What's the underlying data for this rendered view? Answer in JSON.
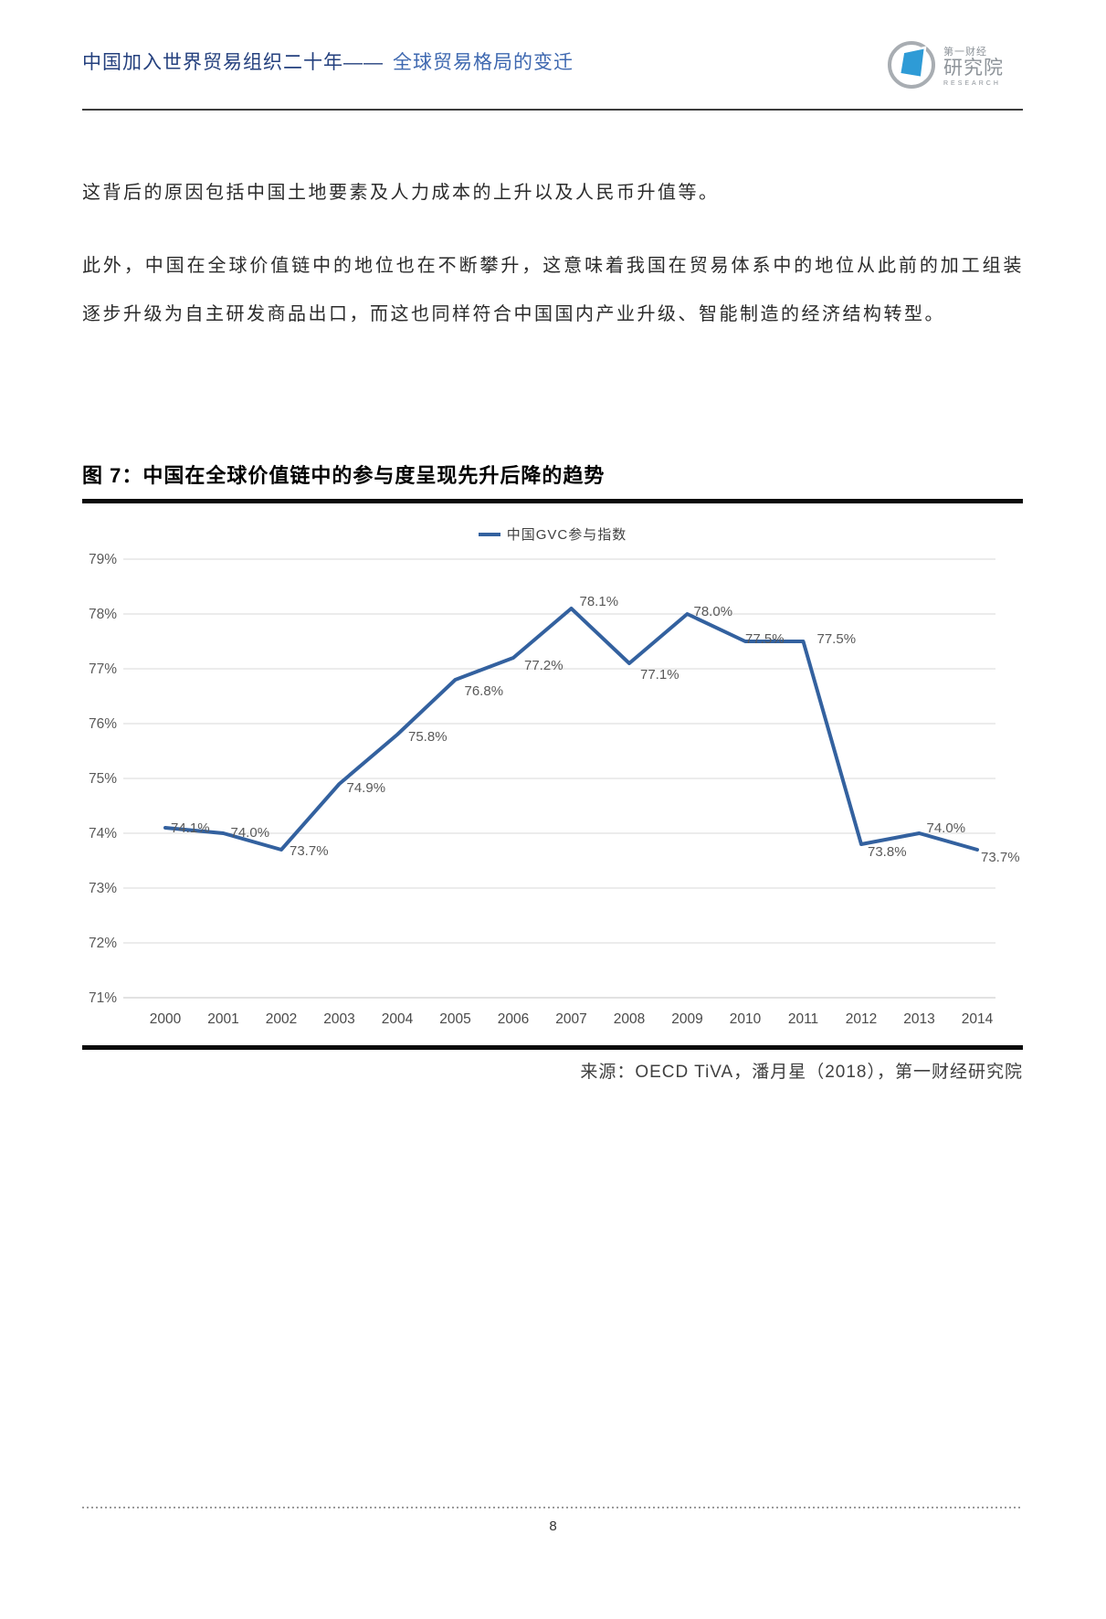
{
  "header": {
    "title_primary": "中国加入世界贸易组织二十年——",
    "title_secondary": "全球贸易格局的变迁",
    "logo": {
      "line1": "第一财经",
      "line2": "研究院",
      "line3": "RESEARCH"
    }
  },
  "body": {
    "paragraph1": "这背后的原因包括中国土地要素及人力成本的上升以及人民币升值等。",
    "paragraph2": "此外，中国在全球价值链中的地位也在不断攀升，这意味着我国在贸易体系中的地位从此前的加工组装逐步升级为自主研发商品出口，而这也同样符合中国国内产业升级、智能制造的经济结构转型。"
  },
  "figure": {
    "title": "图 7：中国在全球价值链中的参与度呈现先升后降的趋势",
    "source": "来源：OECD TiVA，潘月星（2018），第一财经研究院"
  },
  "chart_data": {
    "type": "line",
    "title": "图 7：中国在全球价值链中的参与度呈现先升后降的趋势",
    "legend": [
      "中国GVC参与指数"
    ],
    "legend_position": "top-center",
    "categories": [
      "2000",
      "2001",
      "2002",
      "2003",
      "2004",
      "2005",
      "2006",
      "2007",
      "2008",
      "2009",
      "2010",
      "2011",
      "2012",
      "2013",
      "2014"
    ],
    "series": [
      {
        "name": "中国GVC参与指数",
        "values": [
          74.1,
          74.0,
          73.7,
          74.9,
          75.8,
          76.8,
          77.2,
          78.1,
          77.1,
          78.0,
          77.5,
          77.5,
          73.8,
          74.0,
          73.7
        ]
      }
    ],
    "ylim": [
      71,
      79
    ],
    "y_tick_step": 1,
    "y_tick_format": "percent",
    "grid": "horizontal",
    "line_color": "#33619f",
    "label_color": "#595959"
  },
  "footer": {
    "page_number": "8"
  }
}
